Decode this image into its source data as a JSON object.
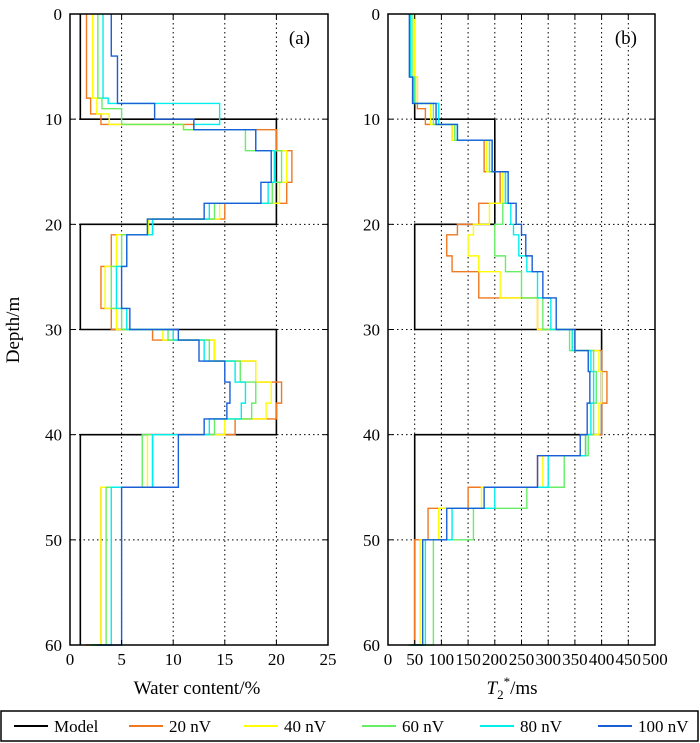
{
  "chart_data": [
    {
      "type": "line",
      "panel_label": "(a)",
      "xlabel": "Water content/%",
      "ylabel": "Depth/m",
      "xlim": [
        0,
        25
      ],
      "ylim": [
        60,
        0
      ],
      "xticks": [
        0,
        5,
        10,
        15,
        20,
        25
      ],
      "yticks": [
        0,
        10,
        20,
        30,
        40,
        50,
        60
      ],
      "grid": true,
      "series": [
        {
          "name": "Model",
          "color": "#000000",
          "x": [
            1,
            1,
            20,
            20,
            1,
            1,
            20,
            20,
            1,
            1
          ],
          "y": [
            0,
            10,
            10,
            20,
            20,
            30,
            30,
            40,
            40,
            60
          ]
        },
        {
          "name": "20 nV",
          "color": "#f07820",
          "x": [
            1.6,
            2,
            3,
            12,
            20,
            21.5,
            21,
            15,
            8,
            4,
            3,
            4,
            8,
            14,
            18,
            20.5,
            20,
            16,
            8,
            3,
            1.5
          ],
          "y": [
            0,
            8,
            9.5,
            10.5,
            11,
            13,
            16,
            18,
            19.5,
            21,
            24,
            28,
            30,
            31,
            33,
            35,
            37,
            38.5,
            40,
            45,
            60
          ]
        },
        {
          "name": "40 nV",
          "color": "#ffff00",
          "x": [
            2.2,
            2.6,
            3.8,
            11,
            18,
            21,
            20.3,
            14.5,
            7.6,
            4.5,
            3.4,
            4.5,
            9,
            14,
            18,
            19.5,
            19,
            15,
            7.5,
            3,
            1.7
          ],
          "y": [
            0,
            8,
            9.5,
            10.5,
            11,
            13,
            16,
            18,
            19.5,
            21,
            24,
            28,
            30,
            31,
            33,
            35,
            37,
            38.5,
            40,
            45,
            60
          ]
        },
        {
          "name": "60 nV",
          "color": "#66ee66",
          "x": [
            2.7,
            3.1,
            5,
            11,
            17,
            20.5,
            19.6,
            14,
            7.5,
            5,
            4,
            5,
            9.5,
            13.5,
            16.5,
            18,
            17.6,
            14,
            7,
            3.5,
            1.9
          ],
          "y": [
            0,
            8,
            9,
            10.5,
            11,
            13,
            16,
            18,
            19.5,
            21,
            24,
            28,
            30,
            31,
            33,
            35,
            37,
            38.5,
            40,
            45,
            60
          ]
        },
        {
          "name": "80 nV",
          "color": "#00eeee",
          "x": [
            3.2,
            3.7,
            14.5,
            12,
            18,
            19.8,
            19.2,
            13.5,
            8,
            5.5,
            4.5,
            5.5,
            10,
            13,
            16,
            17,
            16.6,
            13.5,
            8,
            4,
            2.1
          ],
          "y": [
            0,
            8,
            8.5,
            10.5,
            11,
            13,
            16,
            18,
            19.5,
            21,
            24,
            28,
            30,
            31,
            33,
            35,
            37,
            38.5,
            40,
            45,
            60
          ]
        },
        {
          "name": "100 nV",
          "color": "#1a5fd8",
          "x": [
            4,
            4.6,
            8.2,
            12,
            18,
            19.5,
            18.5,
            13,
            7.5,
            5.5,
            5,
            5.8,
            10.5,
            12.5,
            15,
            15.5,
            15.2,
            13,
            10.5,
            5,
            2.6
          ],
          "y": [
            0,
            4,
            8.5,
            10,
            11,
            13,
            16,
            18,
            19.5,
            21,
            24,
            28,
            30,
            31,
            33,
            35,
            37,
            38.5,
            40,
            45,
            60
          ]
        }
      ]
    },
    {
      "type": "line",
      "panel_label": "(b)",
      "xlabel_main": "T",
      "xlabel_sub": "2",
      "xlabel_sup": "*",
      "xlabel_unit": "/ms",
      "xlim": [
        0,
        500
      ],
      "ylim": [
        60,
        0
      ],
      "xticks": [
        0,
        50,
        100,
        150,
        200,
        250,
        300,
        350,
        400,
        450,
        500
      ],
      "yticks": [
        0,
        10,
        20,
        30,
        40,
        50,
        60
      ],
      "grid": true,
      "series": [
        {
          "name": "Model",
          "color": "#000000",
          "x": [
            50,
            50,
            200,
            200,
            50,
            50,
            400,
            400,
            50,
            50
          ],
          "y": [
            0,
            10,
            10,
            20,
            20,
            30,
            30,
            40,
            40,
            60
          ]
        },
        {
          "name": "20 nV",
          "color": "#f07820",
          "x": [
            50,
            55,
            70,
            120,
            180,
            210,
            170,
            130,
            110,
            120,
            170,
            280,
            350,
            400,
            410,
            400,
            370,
            280,
            150,
            75,
            50,
            38
          ],
          "y": [
            0,
            6,
            9,
            10.5,
            12,
            15,
            18,
            20,
            21,
            23,
            24.5,
            27,
            30,
            32,
            34,
            37,
            40,
            42,
            45,
            47,
            50,
            60
          ]
        },
        {
          "name": "40 nV",
          "color": "#ffff00",
          "x": [
            50,
            55,
            80,
            120,
            185,
            215,
            190,
            160,
            150,
            170,
            210,
            280,
            345,
            395,
            400,
            395,
            370,
            290,
            175,
            95,
            60,
            40
          ],
          "y": [
            0,
            6,
            8.5,
            10.5,
            12,
            15,
            18,
            20,
            21,
            23,
            24.5,
            27,
            30,
            32,
            34,
            37,
            40,
            42,
            45,
            47,
            50,
            60
          ]
        },
        {
          "name": "60 nV",
          "color": "#66ee66",
          "x": [
            45,
            50,
            85,
            125,
            190,
            220,
            215,
            200,
            200,
            220,
            250,
            290,
            340,
            385,
            390,
            385,
            375,
            330,
            260,
            160,
            85,
            45
          ],
          "y": [
            0,
            6,
            8.5,
            10.5,
            12,
            15,
            18,
            20,
            21,
            23,
            24.5,
            27,
            30,
            32,
            34,
            37,
            40,
            42,
            45,
            47,
            50,
            60
          ]
        },
        {
          "name": "80 nV",
          "color": "#00eeee",
          "x": [
            42,
            48,
            95,
            130,
            195,
            220,
            230,
            235,
            245,
            260,
            280,
            305,
            345,
            380,
            385,
            380,
            370,
            300,
            200,
            120,
            70,
            42
          ],
          "y": [
            0,
            6,
            8.5,
            10.5,
            12,
            15,
            18,
            20,
            21,
            23,
            24.5,
            27,
            30,
            32,
            34,
            37,
            40,
            42,
            45,
            47,
            50,
            60
          ]
        },
        {
          "name": "100 nV",
          "color": "#1a5fd8",
          "x": [
            40,
            46,
            90,
            130,
            195,
            225,
            240,
            250,
            258,
            270,
            290,
            315,
            350,
            375,
            378,
            373,
            360,
            280,
            180,
            110,
            65,
            42
          ],
          "y": [
            0,
            6,
            8.5,
            10.5,
            12,
            15,
            18,
            20,
            21,
            23,
            24.5,
            27,
            30,
            32,
            34,
            37,
            40,
            42,
            45,
            47,
            50,
            60
          ]
        }
      ]
    }
  ],
  "legend": {
    "placement": "bottom",
    "entries": [
      "Model",
      "20 nV",
      "40 nV",
      "60 nV",
      "80 nV",
      "100 nV"
    ]
  }
}
